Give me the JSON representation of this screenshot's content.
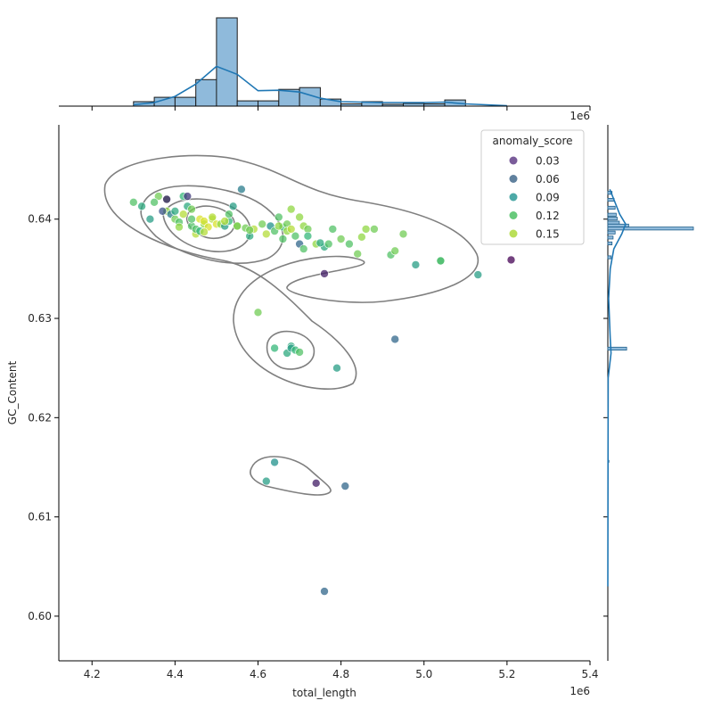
{
  "chart_data": {
    "type": "scatter",
    "title": "",
    "xlabel": "total_length",
    "ylabel": "GC_Content",
    "x_offset_label": "1e6",
    "top_offset_label": "1e6",
    "xlim": [
      4.12,
      5.4
    ],
    "ylim": [
      0.5955,
      0.6495
    ],
    "x_ticks": [
      4.2,
      4.4,
      4.6,
      4.8,
      5.0,
      5.2,
      5.4
    ],
    "x_tick_labels": [
      "4.2",
      "4.4",
      "4.6",
      "4.8",
      "5.0",
      "5.2",
      "5.4"
    ],
    "y_ticks": [
      0.6,
      0.61,
      0.62,
      0.63,
      0.64
    ],
    "y_tick_labels": [
      "0.60",
      "0.61",
      "0.62",
      "0.63",
      "0.64"
    ],
    "grid": false,
    "legend": {
      "title": "anomaly_score",
      "placement": "top-right",
      "entries": [
        {
          "label": "0.03",
          "color": "#6b4a8f"
        },
        {
          "label": "0.06",
          "color": "#4f7393"
        },
        {
          "label": "0.09",
          "color": "#3aa09d"
        },
        {
          "label": "0.12",
          "color": "#58c46e"
        },
        {
          "label": "0.15",
          "color": "#b3dc46"
        }
      ]
    },
    "colormap": "viridis",
    "series": [
      {
        "x": [
          4.3,
          4.32,
          4.34,
          4.36,
          4.38,
          4.38,
          4.39,
          4.4,
          4.41,
          4.42,
          4.42,
          4.43,
          4.44,
          4.44,
          4.45,
          4.45,
          4.46,
          4.47,
          4.47,
          4.48,
          4.49,
          4.5,
          4.51,
          4.52,
          4.53,
          4.53,
          4.54,
          4.55,
          4.57,
          4.58,
          4.59,
          4.61,
          4.62,
          4.63,
          4.64,
          4.65,
          4.66,
          4.66,
          4.67,
          4.67,
          4.68,
          4.68,
          4.69,
          4.7,
          4.7,
          4.71,
          4.71,
          4.72,
          4.72,
          4.74,
          4.76,
          4.77,
          4.78,
          4.8,
          4.82,
          4.84,
          4.85,
          4.86,
          4.88,
          4.92,
          4.93,
          4.95,
          4.98,
          5.04,
          5.04,
          5.13,
          4.76,
          4.56,
          4.35,
          4.37,
          4.4,
          4.43,
          4.44,
          4.46,
          4.49,
          4.52,
          4.55,
          4.58,
          4.6,
          4.65,
          4.75,
          4.38,
          4.41,
          4.47
        ],
        "y": [
          0.6417,
          0.6413,
          0.64,
          0.6423,
          0.642,
          0.6408,
          0.6405,
          0.64,
          0.6397,
          0.6423,
          0.6405,
          0.6413,
          0.6393,
          0.641,
          0.6385,
          0.639,
          0.64,
          0.6395,
          0.6398,
          0.6392,
          0.64,
          0.6395,
          0.6395,
          0.6393,
          0.6398,
          0.6405,
          0.6413,
          0.6393,
          0.6391,
          0.6383,
          0.639,
          0.6395,
          0.6385,
          0.6393,
          0.6388,
          0.6402,
          0.638,
          0.6392,
          0.6395,
          0.6388,
          0.639,
          0.641,
          0.6383,
          0.6375,
          0.6402,
          0.637,
          0.6393,
          0.639,
          0.6383,
          0.6375,
          0.6372,
          0.6375,
          0.639,
          0.638,
          0.6375,
          0.6365,
          0.6382,
          0.639,
          0.639,
          0.6364,
          0.6368,
          0.6385,
          0.6354,
          0.6358,
          0.6358,
          0.6344,
          0.6345,
          0.643,
          0.6417,
          0.6408,
          0.6408,
          0.6423,
          0.64,
          0.6388,
          0.6402,
          0.6398,
          0.6393,
          0.6389,
          0.6306,
          0.6393,
          0.6376,
          0.642,
          0.6392,
          0.6387
        ],
        "score": [
          0.12,
          0.1,
          0.09,
          0.13,
          0.12,
          0.14,
          0.07,
          0.13,
          0.12,
          0.11,
          0.15,
          0.1,
          0.12,
          0.13,
          0.15,
          0.12,
          0.16,
          0.14,
          0.16,
          0.16,
          0.15,
          0.16,
          0.14,
          0.09,
          0.11,
          0.12,
          0.09,
          0.1,
          0.13,
          0.1,
          0.15,
          0.13,
          0.15,
          0.08,
          0.12,
          0.12,
          0.12,
          0.11,
          0.13,
          0.14,
          0.15,
          0.14,
          0.12,
          0.06,
          0.14,
          0.12,
          0.14,
          0.13,
          0.11,
          0.14,
          0.1,
          0.12,
          0.12,
          0.13,
          0.12,
          0.13,
          0.14,
          0.14,
          0.13,
          0.12,
          0.13,
          0.13,
          0.09,
          0.1,
          0.12,
          0.09,
          0.03,
          0.07,
          0.12,
          0.05,
          0.1,
          0.04,
          0.12,
          0.11,
          0.15,
          0.15,
          0.14,
          0.13,
          0.13,
          0.14,
          0.1,
          0.03,
          0.14,
          0.15
        ]
      },
      {
        "x": [
          4.64,
          4.67,
          4.68,
          4.68,
          4.69,
          4.7,
          4.79,
          4.93,
          4.64,
          4.62,
          4.74,
          4.81,
          4.76,
          5.21
        ],
        "y": [
          0.627,
          0.6265,
          0.6272,
          0.627,
          0.6268,
          0.6266,
          0.625,
          0.6279,
          0.6155,
          0.6136,
          0.6134,
          0.6131,
          0.6025,
          0.6359
        ],
        "score": [
          0.11,
          0.1,
          0.1,
          0.09,
          0.11,
          0.12,
          0.09,
          0.06,
          0.08,
          0.09,
          0.03,
          0.06,
          0.06,
          0.02
        ]
      }
    ],
    "kde_contour_levels": 4,
    "top_marginal": {
      "type": "histogram+kde",
      "bin_edges": [
        4.3,
        4.35,
        4.4,
        4.45,
        4.5,
        4.55,
        4.6,
        4.65,
        4.7,
        4.75,
        4.8,
        4.85,
        4.9,
        4.95,
        5.0,
        5.05,
        5.1
      ],
      "counts": [
        1,
        2,
        2,
        6,
        20,
        1.2,
        1.2,
        3.8,
        4.2,
        1.6,
        0.5,
        1,
        0.4,
        0.6,
        0.5,
        1.4
      ],
      "kde": [
        [
          4.3,
          0.3
        ],
        [
          4.35,
          0.8
        ],
        [
          4.4,
          2.2
        ],
        [
          4.45,
          5.0
        ],
        [
          4.5,
          9.0
        ],
        [
          4.55,
          7.2
        ],
        [
          4.6,
          3.5
        ],
        [
          4.65,
          3.6
        ],
        [
          4.7,
          3.2
        ],
        [
          4.75,
          1.8
        ],
        [
          4.8,
          1.0
        ],
        [
          4.9,
          0.8
        ],
        [
          5.0,
          0.8
        ],
        [
          5.05,
          0.9
        ],
        [
          5.1,
          0.5
        ],
        [
          5.2,
          0.1
        ]
      ]
    },
    "right_marginal": {
      "type": "histogram+kde",
      "bins": [
        [
          0.6425,
          0.6428,
          0.2
        ],
        [
          0.6418,
          0.6421,
          0.3
        ],
        [
          0.641,
          0.6413,
          0.35
        ],
        [
          0.6403,
          0.6406,
          0.4
        ],
        [
          0.6399,
          0.6402,
          0.45
        ],
        [
          0.6395,
          0.6398,
          0.55
        ],
        [
          0.6392,
          0.6395,
          1.0
        ],
        [
          0.6389,
          0.6392,
          4.1
        ],
        [
          0.6385,
          0.6388,
          0.35
        ],
        [
          0.638,
          0.6383,
          0.25
        ],
        [
          0.6374,
          0.6377,
          0.2
        ],
        [
          0.636,
          0.6363,
          0.15
        ],
        [
          0.6268,
          0.6271,
          0.9
        ],
        [
          0.6155,
          0.6157,
          0.05
        ]
      ],
      "kde": [
        [
          0.643,
          0.05
        ],
        [
          0.642,
          0.15
        ],
        [
          0.6405,
          0.3
        ],
        [
          0.6395,
          0.45
        ],
        [
          0.6385,
          0.35
        ],
        [
          0.637,
          0.15
        ],
        [
          0.635,
          0.06
        ],
        [
          0.632,
          0.02
        ],
        [
          0.628,
          0.06
        ],
        [
          0.6265,
          0.08
        ],
        [
          0.624,
          0.01
        ],
        [
          0.615,
          0.005
        ],
        [
          0.603,
          0.001
        ]
      ]
    }
  }
}
